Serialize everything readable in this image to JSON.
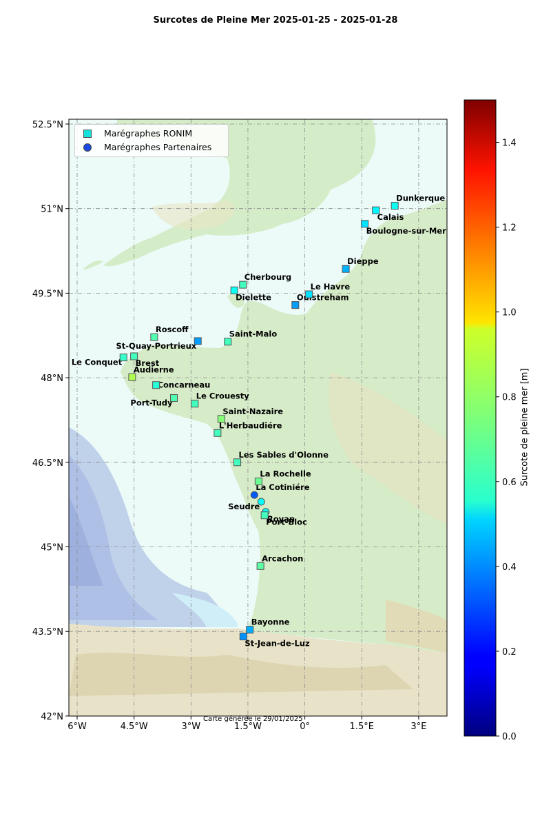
{
  "title": "Surcotes de Pleine Mer 2025-01-25 - 2025-01-28",
  "footer": "Carte générée le 29/01/2025",
  "legend": {
    "ronim": "Marégraphes RONIM",
    "partners": "Marégraphes Partenaires"
  },
  "axes": {
    "x_ticks": [
      {
        "value": -6,
        "label": "6°W"
      },
      {
        "value": -4.5,
        "label": "4.5°W"
      },
      {
        "value": -3,
        "label": "3°W"
      },
      {
        "value": -1.5,
        "label": "1.5°W"
      },
      {
        "value": 0,
        "label": "0°"
      },
      {
        "value": 1.5,
        "label": "1.5°E"
      },
      {
        "value": 3,
        "label": "3°E"
      }
    ],
    "y_ticks": [
      {
        "value": 52.5,
        "label": "52.5°N"
      },
      {
        "value": 51,
        "label": "51°N"
      },
      {
        "value": 49.5,
        "label": "49.5°N"
      },
      {
        "value": 48,
        "label": "48°N"
      },
      {
        "value": 46.5,
        "label": "46.5°N"
      },
      {
        "value": 45,
        "label": "45°N"
      },
      {
        "value": 43.5,
        "label": "43.5°N"
      },
      {
        "value": 42,
        "label": "42°N"
      }
    ],
    "lon_range": [
      -6.2,
      3.8
    ],
    "lat_range": [
      41.9,
      52.6
    ]
  },
  "colorbar": {
    "label": "Surcote de pleine mer [m]",
    "min": 0,
    "max": 1.5,
    "ticks": [
      {
        "value": 0,
        "label": "0.0"
      },
      {
        "value": 0.2,
        "label": "0.2"
      },
      {
        "value": 0.4,
        "label": "0.4"
      },
      {
        "value": 0.6,
        "label": "0.6"
      },
      {
        "value": 0.8,
        "label": "0.8"
      },
      {
        "value": 1.0,
        "label": "1.0"
      },
      {
        "value": 1.2,
        "label": "1.2"
      },
      {
        "value": 1.4,
        "label": "1.4"
      }
    ],
    "colormap": "jet"
  },
  "stations": [
    {
      "name": "Dunkerque",
      "lon": 2.37,
      "lat": 51.05,
      "surge": 0.58,
      "type": "ronim",
      "label_pos": "above-right"
    },
    {
      "name": "Calais",
      "lon": 1.87,
      "lat": 50.97,
      "surge": 0.55,
      "type": "ronim",
      "label_pos": "below-right"
    },
    {
      "name": "Boulogne-sur-Mer",
      "lon": 1.58,
      "lat": 50.73,
      "surge": 0.52,
      "type": "ronim",
      "label_pos": "below-right"
    },
    {
      "name": "Dieppe",
      "lon": 1.08,
      "lat": 49.93,
      "surge": 0.45,
      "type": "ronim",
      "label_pos": "above-right"
    },
    {
      "name": "Le Havre",
      "lon": 0.11,
      "lat": 49.48,
      "surge": 0.52,
      "type": "ronim",
      "label_pos": "above-right"
    },
    {
      "name": "Ouistreham",
      "lon": -0.25,
      "lat": 49.29,
      "surge": 0.42,
      "type": "ronim",
      "label_pos": "above-right"
    },
    {
      "name": "Cherbourg",
      "lon": -1.63,
      "lat": 49.65,
      "surge": 0.66,
      "type": "ronim",
      "label_pos": "above-right"
    },
    {
      "name": "Dielette",
      "lon": -1.86,
      "lat": 49.55,
      "surge": 0.58,
      "type": "ronim",
      "label_pos": "below-right"
    },
    {
      "name": "Saint-Malo",
      "lon": -2.03,
      "lat": 48.64,
      "surge": 0.66,
      "type": "ronim",
      "label_pos": "above-right"
    },
    {
      "name": "St-Quay-Portrieux",
      "lon": -2.82,
      "lat": 48.65,
      "surge": 0.42,
      "type": "ronim",
      "label_pos": "left"
    },
    {
      "name": "Roscoff",
      "lon": -3.97,
      "lat": 48.72,
      "surge": 0.68,
      "type": "ronim",
      "label_pos": "above-right"
    },
    {
      "name": "Brest",
      "lon": -4.5,
      "lat": 48.38,
      "surge": 0.66,
      "type": "ronim",
      "label_pos": "below-right"
    },
    {
      "name": "Le Conquet",
      "lon": -4.78,
      "lat": 48.36,
      "surge": 0.64,
      "type": "ronim",
      "label_pos": "below-left"
    },
    {
      "name": "Audierne",
      "lon": -4.55,
      "lat": 48.01,
      "surge": 0.82,
      "type": "ronim",
      "label_pos": "above-right"
    },
    {
      "name": "Concarneau",
      "lon": -3.92,
      "lat": 47.87,
      "surge": 0.62,
      "type": "ronim",
      "label_pos": "right"
    },
    {
      "name": "Port-Tudy",
      "lon": -3.45,
      "lat": 47.64,
      "surge": 0.68,
      "type": "ronim",
      "label_pos": "below-left"
    },
    {
      "name": "Le Crouesty",
      "lon": -2.9,
      "lat": 47.54,
      "surge": 0.66,
      "type": "ronim",
      "label_pos": "above-right"
    },
    {
      "name": "Saint-Nazaire",
      "lon": -2.2,
      "lat": 47.27,
      "surge": 0.76,
      "type": "ronim",
      "label_pos": "above-right"
    },
    {
      "name": "L'Herbaudiére",
      "lon": -2.3,
      "lat": 47.02,
      "surge": 0.66,
      "type": "ronim",
      "label_pos": "above-right"
    },
    {
      "name": "Les Sables d'Olonne",
      "lon": -1.78,
      "lat": 46.5,
      "surge": 0.66,
      "type": "ronim",
      "label_pos": "above-right"
    },
    {
      "name": "La Rochelle",
      "lon": -1.22,
      "lat": 46.16,
      "surge": 0.72,
      "type": "ronim",
      "label_pos": "above-right"
    },
    {
      "name": "La Cotiniére",
      "lon": -1.33,
      "lat": 45.92,
      "surge": 0.32,
      "type": "partner",
      "label_pos": "above-right"
    },
    {
      "name": "Royan",
      "lon": -1.03,
      "lat": 45.62,
      "surge": 0.58,
      "type": "partner",
      "label_pos": "below-right"
    },
    {
      "name": "Seudre",
      "lon": -1.15,
      "lat": 45.8,
      "surge": 0.56,
      "type": "partner",
      "label_pos": "below-left"
    },
    {
      "name": "Port-Bloc",
      "lon": -1.06,
      "lat": 45.56,
      "surge": 0.66,
      "type": "ronim",
      "label_pos": "below-right"
    },
    {
      "name": "Arcachon",
      "lon": -1.17,
      "lat": 44.66,
      "surge": 0.7,
      "type": "ronim",
      "label_pos": "above-right"
    },
    {
      "name": "Bayonne",
      "lon": -1.45,
      "lat": 43.53,
      "surge": 0.44,
      "type": "ronim",
      "label_pos": "above-right"
    },
    {
      "name": "St-Jean-de-Luz",
      "lon": -1.62,
      "lat": 43.41,
      "surge": 0.4,
      "type": "ronim",
      "label_pos": "below-right"
    }
  ]
}
